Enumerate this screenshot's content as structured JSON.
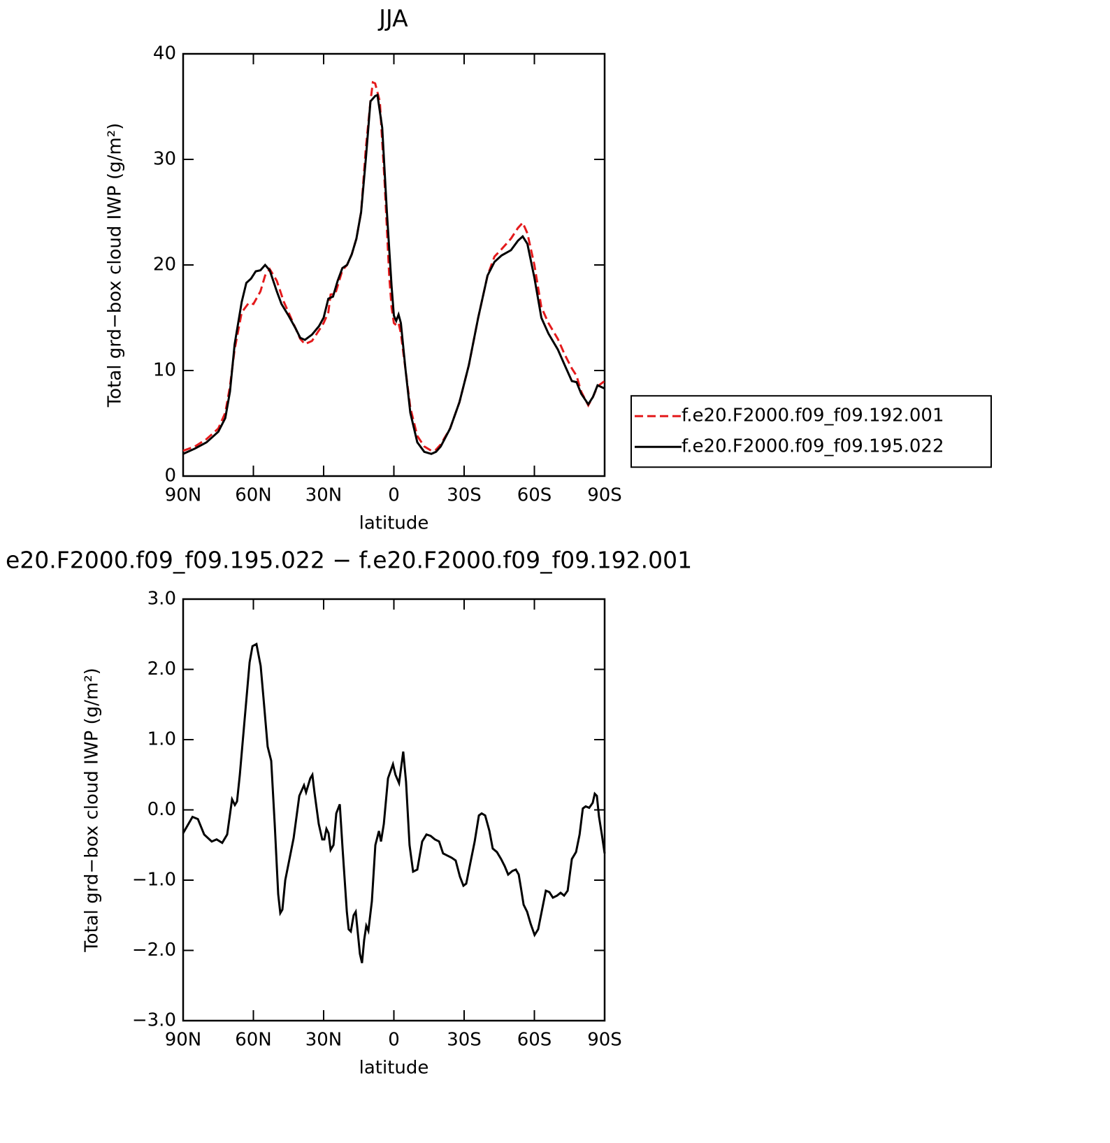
{
  "chart_data": [
    {
      "type": "line",
      "title": "JJA",
      "xlabel": "latitude",
      "ylabel": "Total grd−box cloud IWP (g/m²)",
      "xlim": [
        90,
        -90
      ],
      "xticks": [
        {
          "value": 90,
          "label": "90N"
        },
        {
          "value": 60,
          "label": "60N"
        },
        {
          "value": 30,
          "label": "30N"
        },
        0,
        {
          "value": -30,
          "label": "30S"
        },
        {
          "value": -60,
          "label": "60S"
        },
        {
          "value": -90,
          "label": "90S"
        }
      ],
      "ylim": [
        0,
        40
      ],
      "yticks": [
        0,
        10,
        20,
        30,
        40
      ],
      "legend": "right",
      "series": [
        {
          "name": "f.e20.F2000.f09_f09.192.001",
          "color": "#e41a1c",
          "dash": "dashed",
          "x": [
            90,
            85,
            80,
            75,
            72,
            70,
            68,
            65,
            62,
            60,
            57,
            55,
            53,
            50,
            47,
            45,
            42,
            40,
            38,
            35,
            32,
            30,
            28,
            27,
            25,
            22,
            20,
            18,
            16,
            14,
            12,
            10,
            9,
            8,
            6,
            4,
            2,
            1,
            0,
            -1,
            -2,
            -3,
            -5,
            -7,
            -10,
            -13,
            -16,
            -18,
            -20,
            -24,
            -28,
            -32,
            -36,
            -40,
            -43,
            -46,
            -50,
            -53,
            -55,
            -57,
            -60,
            -63,
            -66,
            -70,
            -73,
            -76,
            -78,
            -80,
            -83,
            -85,
            -87,
            -90
          ],
          "values": [
            2.4,
            2.8,
            3.5,
            4.5,
            6,
            8.5,
            12,
            15.5,
            16.4,
            16.3,
            17.5,
            19,
            19.6,
            18.5,
            16.5,
            15.5,
            14,
            13,
            12.5,
            12.8,
            13.8,
            14.5,
            15.5,
            17.2,
            17.3,
            19.5,
            20,
            21,
            22.5,
            25,
            31,
            35.5,
            37.3,
            37.2,
            35.5,
            28,
            19,
            16,
            14.5,
            14.3,
            14.5,
            13.5,
            10,
            6.5,
            3.8,
            2.8,
            2.4,
            2.5,
            3,
            4.5,
            7,
            10.5,
            15,
            19,
            20.8,
            21.5,
            22.5,
            23.5,
            24,
            23,
            20,
            16,
            14.5,
            13,
            11.5,
            10.2,
            9.5,
            8,
            6.7,
            7.5,
            8.5,
            9
          ]
        },
        {
          "name": "f.e20.F2000.f09_f09.195.022",
          "color": "#000000",
          "dash": "solid",
          "x": [
            90,
            85,
            80,
            75,
            72,
            70,
            68,
            65,
            63,
            61,
            59,
            57,
            55,
            53,
            50,
            48,
            45,
            42,
            40,
            38,
            35,
            32,
            30,
            28,
            26,
            24,
            22,
            20,
            18,
            16,
            14,
            12,
            10,
            8,
            7,
            5,
            3,
            1,
            0,
            -1,
            -2,
            -3,
            -5,
            -7,
            -10,
            -13,
            -16,
            -18,
            -20,
            -24,
            -28,
            -32,
            -36,
            -40,
            -43,
            -46,
            -50,
            -53,
            -55,
            -57,
            -60,
            -63,
            -66,
            -70,
            -73,
            -76,
            -78,
            -80,
            -83,
            -85,
            -87,
            -90
          ],
          "values": [
            2.1,
            2.6,
            3.2,
            4.2,
            5.5,
            8,
            12.5,
            16.5,
            18.3,
            18.7,
            19.4,
            19.5,
            20,
            19.5,
            17.5,
            16.3,
            15.2,
            14,
            13.1,
            12.9,
            13.4,
            14.2,
            15,
            16.8,
            17,
            18.5,
            19.7,
            20,
            21,
            22.5,
            25,
            30,
            35.5,
            36,
            36.1,
            33,
            25,
            18,
            15.2,
            14.7,
            15.3,
            14.5,
            10,
            6,
            3.2,
            2.3,
            2.1,
            2.3,
            2.8,
            4.5,
            7,
            10.5,
            15,
            19,
            20.3,
            20.9,
            21.4,
            22.3,
            22.7,
            22,
            18.8,
            15,
            13.5,
            12,
            10.5,
            9,
            8.9,
            7.8,
            6.8,
            7.5,
            8.6,
            8.3
          ]
        }
      ]
    },
    {
      "type": "line",
      "title": "e20.F2000.f09_f09.195.022 − f.e20.F2000.f09_f09.192.001",
      "xlabel": "latitude",
      "ylabel": "Total grd−box cloud IWP (g/m²)",
      "xlim": [
        90,
        -90
      ],
      "xticks": [
        {
          "value": 90,
          "label": "90N"
        },
        {
          "value": 60,
          "label": "60N"
        },
        {
          "value": 30,
          "label": "30N"
        },
        0,
        {
          "value": -30,
          "label": "30S"
        },
        {
          "value": -60,
          "label": "60S"
        },
        {
          "value": -90,
          "label": "90S"
        }
      ],
      "ylim": [
        -3,
        3
      ],
      "yticks": [
        {
          "value": -3,
          "label": "−3.0"
        },
        {
          "value": -2,
          "label": "−2.0"
        },
        {
          "value": -1,
          "label": "−1.0"
        },
        {
          "value": 0,
          "label": "0.0"
        },
        {
          "value": 1,
          "label": "1.0"
        },
        {
          "value": 2,
          "label": "2.0"
        },
        {
          "value": 3,
          "label": "3.0"
        }
      ],
      "series": [
        {
          "color": "#000000",
          "dash": "solid",
          "x": [
            90,
            86,
            83.7,
            81,
            77.8,
            75.7,
            73.3,
            71.2,
            69.1,
            67.9,
            67,
            65.8,
            63.7,
            61.6,
            60.4,
            58.7,
            56.9,
            55.7,
            53.9,
            52.4,
            50.9,
            49.4,
            48.5,
            47.6,
            46.4,
            44.9,
            42.8,
            40.4,
            38.4,
            37.5,
            35.7,
            34.8,
            33.9,
            32.1,
            30.6,
            29.7,
            28.8,
            27.9,
            27,
            25.8,
            24.6,
            23.1,
            21.9,
            20.1,
            19.3,
            18.4,
            17.2,
            16.3,
            15.4,
            14.5,
            13.6,
            12.7,
            11.8,
            10.9,
            9.4,
            7.9,
            6.4,
            5.5,
            4.3,
            2.5,
            0.4,
            -0.7,
            -2.2,
            -4,
            -5.2,
            -6.7,
            -8.2,
            -10,
            -12.1,
            -13.9,
            -15.7,
            -17.5,
            -19.3,
            -21,
            -22.8,
            -24.6,
            -26.4,
            -28.2,
            -29.7,
            -30.9,
            -32.7,
            -34.5,
            -36.3,
            -37.5,
            -39,
            -40.8,
            -42.2,
            -44,
            -45.8,
            -47.3,
            -48.8,
            -50.6,
            -52.1,
            -53.3,
            -54.2,
            -55.4,
            -56.9,
            -58.4,
            -60.1,
            -61.6,
            -63.1,
            -64.9,
            -66.4,
            -67.9,
            -69.7,
            -71.2,
            -72.7,
            -74.2,
            -76,
            -77.8,
            -79.3,
            -80.7,
            -81.9,
            -83.4,
            -84.9,
            -85.8,
            -86.7,
            -87.6,
            -88.8,
            -90
          ],
          "values": [
            -0.33,
            -0.1,
            -0.13,
            -0.35,
            -0.45,
            -0.42,
            -0.47,
            -0.35,
            0.15,
            0.07,
            0.12,
            0.5,
            1.3,
            2.1,
            2.33,
            2.36,
            2.05,
            1.6,
            0.9,
            0.7,
            -0.2,
            -1.2,
            -1.47,
            -1.42,
            -1,
            -0.75,
            -0.4,
            0.2,
            0.35,
            0.25,
            0.45,
            0.5,
            0.25,
            -0.2,
            -0.42,
            -0.42,
            -0.27,
            -0.33,
            -0.57,
            -0.5,
            -0.05,
            0.08,
            -0.55,
            -1.45,
            -1.7,
            -1.73,
            -1.5,
            -1.45,
            -1.75,
            -2.05,
            -2.18,
            -1.85,
            -1.65,
            -1.72,
            -1.3,
            -0.5,
            -0.3,
            -0.45,
            -0.2,
            0.45,
            0.65,
            0.5,
            0.38,
            0.83,
            0.4,
            -0.5,
            -0.88,
            -0.85,
            -0.45,
            -0.35,
            -0.37,
            -0.42,
            -0.45,
            -0.62,
            -0.65,
            -0.68,
            -0.72,
            -0.95,
            -1.08,
            -1.05,
            -0.75,
            -0.45,
            -0.08,
            -0.05,
            -0.08,
            -0.3,
            -0.55,
            -0.6,
            -0.7,
            -0.8,
            -0.92,
            -0.87,
            -0.85,
            -0.92,
            -1.1,
            -1.35,
            -1.45,
            -1.62,
            -1.78,
            -1.7,
            -1.45,
            -1.15,
            -1.17,
            -1.25,
            -1.22,
            -1.18,
            -1.22,
            -1.15,
            -0.7,
            -0.6,
            -0.35,
            0.02,
            0.05,
            0.03,
            0.1,
            0.23,
            0.2,
            -0.1,
            -0.35,
            -0.62
          ]
        }
      ]
    }
  ]
}
